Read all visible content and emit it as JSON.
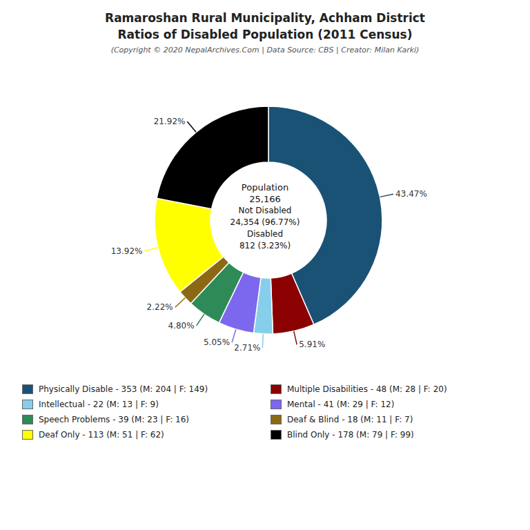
{
  "chart_data": {
    "type": "donut",
    "title": [
      "Ramaroshan Rural Municipality, Achham District",
      "Ratios of Disabled Population (2011 Census)"
    ],
    "subtitle": "(Copyright © 2020 NepalArchives.Com | Data Source: CBS | Creator: Milan Karki)",
    "annotations": [
      "Population",
      "25,166",
      "Not Disabled",
      "24,354 (96.77%)",
      "Disabled",
      "812 (3.23%)"
    ],
    "categories": [
      "Physically Disable - 353 (M: 204 | F: 149)",
      "Multiple Disabilities - 48 (M: 28 | F: 20)",
      "Intellectual - 22 (M: 13 | F: 9)",
      "Mental - 41 (M: 29 | F: 12)",
      "Speech Problems - 39 (M: 23 | F: 16)",
      "Deaf & Blind - 18 (M: 11 | F: 7)",
      "Deaf Only - 113 (M: 51 | F: 62)",
      "Blind Only - 178 (M: 79 | F: 99)"
    ],
    "values": [
      43.47,
      5.91,
      2.71,
      5.05,
      4.8,
      2.22,
      13.92,
      21.92
    ],
    "value_labels": [
      "43.47%",
      "5.91%",
      "2.71%",
      "5.05%",
      "4.80%",
      "2.22%",
      "13.92%",
      "21.92%"
    ],
    "colors": [
      "#1a5276",
      "#8b0000",
      "#87ceeb",
      "#7b68ee",
      "#2e8b57",
      "#8b6914",
      "#ffff00",
      "#000000"
    ],
    "data_labels": true,
    "legend": "bottom"
  }
}
